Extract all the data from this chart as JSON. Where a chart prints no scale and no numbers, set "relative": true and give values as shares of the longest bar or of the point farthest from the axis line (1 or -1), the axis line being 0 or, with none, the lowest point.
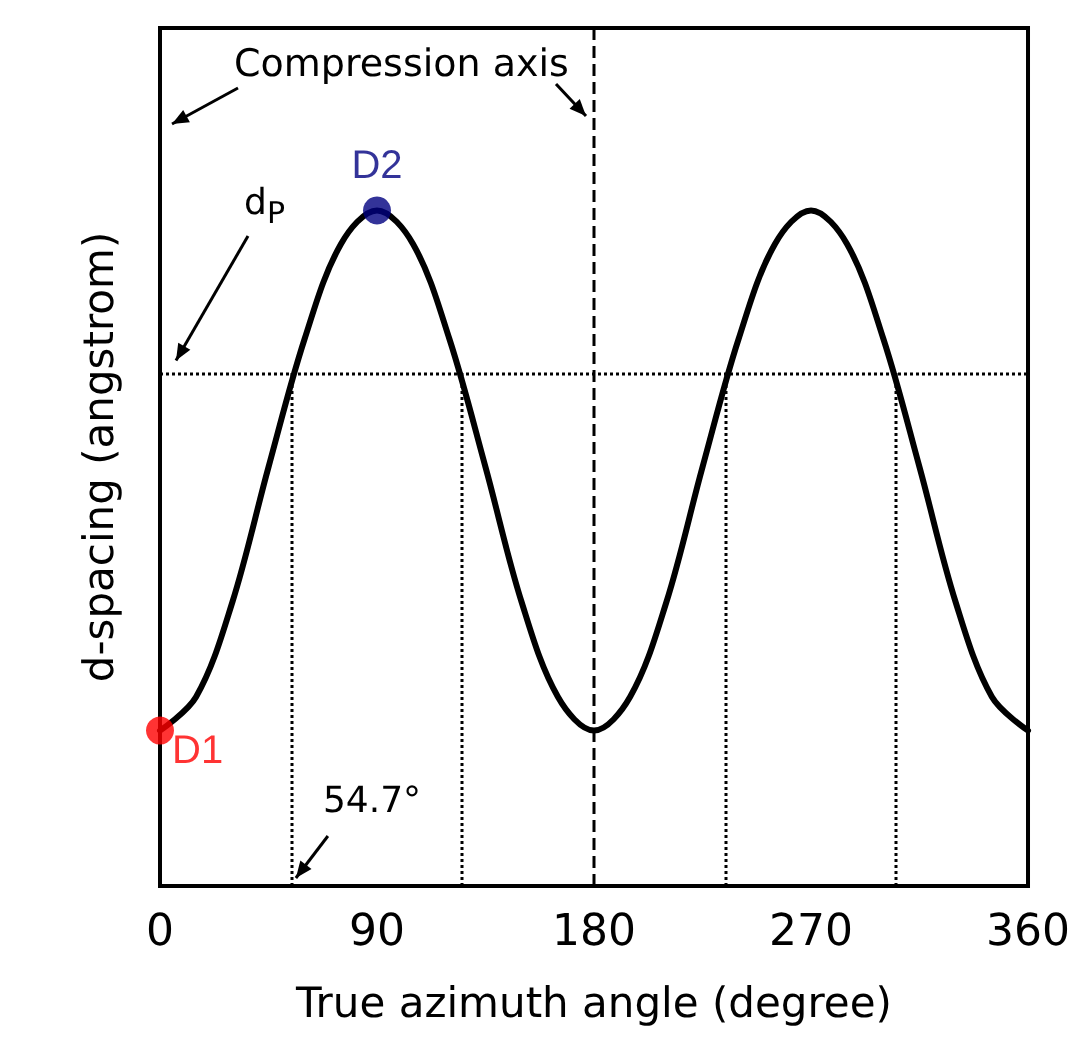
{
  "chart_data": {
    "type": "line",
    "relative": true,
    "xlabel": "True azimuth angle (degree)",
    "ylabel": "d-spacing (angstrom)",
    "xlim": [
      0,
      360
    ],
    "xticks": [
      0,
      90,
      180,
      270,
      360
    ],
    "grid": false,
    "legend": false,
    "line_style": "solid",
    "series": [
      {
        "type": "line",
        "color": "#000000",
        "marker": "none",
        "x": [
          0,
          15,
          30,
          45,
          60,
          75,
          90,
          105,
          120,
          135,
          150,
          165,
          180,
          195,
          210,
          225,
          240,
          255,
          270,
          285,
          300,
          315,
          330,
          345,
          360
        ],
        "values": [
          0.23,
          0.28,
          0.42,
          0.62,
          0.81,
          0.95,
          1.0,
          0.95,
          0.81,
          0.62,
          0.42,
          0.28,
          0.23,
          0.28,
          0.42,
          0.62,
          0.81,
          0.95,
          1.0,
          0.95,
          0.81,
          0.62,
          0.42,
          0.28,
          0.23
        ]
      },
      {
        "type": "scatter",
        "marker": "circle",
        "name": "D1",
        "color": "#ff0000",
        "x": [
          0
        ],
        "values": [
          0.23
        ]
      },
      {
        "type": "scatter",
        "marker": "circle",
        "name": "D2",
        "color": "#000080",
        "x": [
          90
        ],
        "values": [
          1.0
        ]
      }
    ],
    "ref_lines": [
      {
        "axis": "y",
        "value": 0.76,
        "label": "d$_{P}$",
        "line_style": "dotted",
        "color": "#000000"
      },
      {
        "axis": "x",
        "value": 180,
        "label": "Compression axis",
        "line_style": "dashed",
        "color": "#000000"
      },
      {
        "axis": "x",
        "value": 54.7,
        "label": "54.7°",
        "line_style": "dotted",
        "color": "#000000"
      },
      {
        "axis": "x",
        "value": 125.3,
        "line_style": "dotted",
        "color": "#000000"
      },
      {
        "axis": "x",
        "value": 234.7,
        "line_style": "dotted",
        "color": "#000000"
      },
      {
        "axis": "x",
        "value": 305.3,
        "line_style": "dotted",
        "color": "#000000"
      }
    ]
  }
}
